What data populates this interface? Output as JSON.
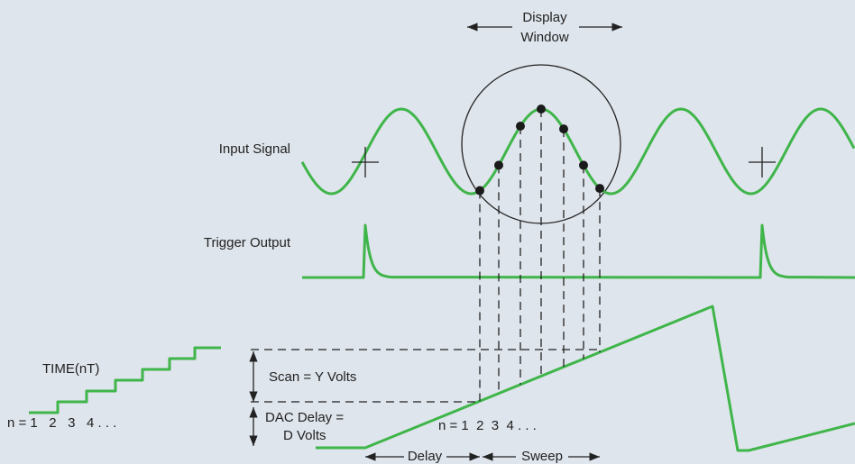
{
  "display_window": [
    "Display",
    "Window"
  ],
  "input_signal": "Input Signal",
  "trigger_output": "Trigger Output",
  "staircase": {
    "label": "TIME(nT)",
    "n_label": "n = 1   2   3   4 . . ."
  },
  "scan": "Scan = Y Volts",
  "dac_delay": [
    "DAC Delay =",
    "D Volts"
  ],
  "ramp_n_label": "n = 1  2  3  4 . . .",
  "delay": "Delay",
  "sweep": "Sweep"
}
